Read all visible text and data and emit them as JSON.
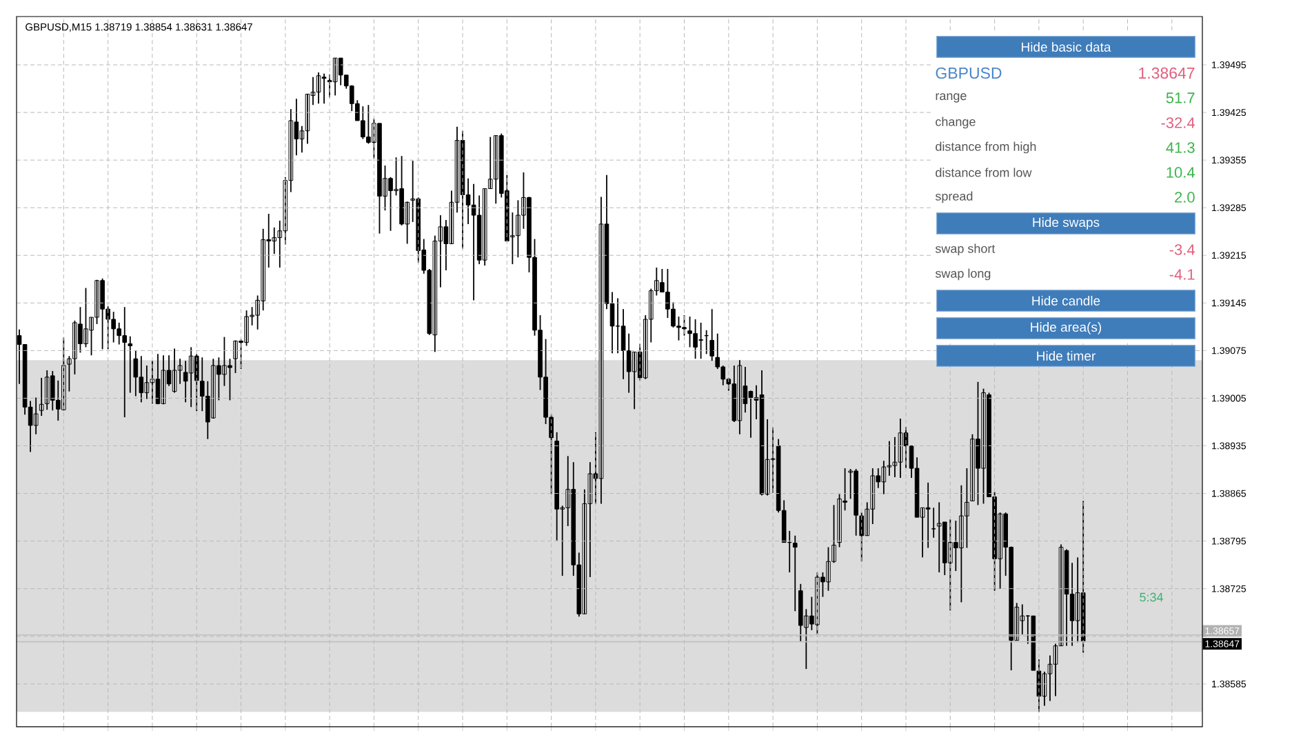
{
  "chart_data": {
    "type": "candlestick",
    "title": "GBPUSD,M15  1.38719 1.38854 1.38631 1.38647",
    "categories": [
      null,
      null,
      null,
      null,
      null,
      null,
      null,
      null,
      null,
      null,
      null,
      null,
      null,
      null,
      null,
      null,
      null,
      null,
      null,
      null,
      null,
      null,
      null,
      null,
      null,
      null,
      null,
      null,
      null,
      null,
      null,
      null,
      null,
      null,
      null,
      null,
      null,
      null,
      null,
      null,
      null,
      null,
      null,
      null,
      null,
      null,
      null,
      null,
      null,
      null,
      null,
      null,
      null,
      null,
      null,
      null,
      null,
      null,
      null,
      null,
      null,
      null,
      null,
      null,
      null,
      null,
      null,
      null,
      null,
      null,
      null,
      null,
      null,
      null,
      null,
      null,
      null,
      null,
      null,
      null,
      null,
      null,
      null,
      null,
      null,
      null,
      null,
      null,
      null,
      null,
      null,
      null,
      null,
      null,
      null,
      null,
      null,
      null,
      null,
      null,
      null,
      null,
      null,
      null,
      null,
      null,
      null,
      null,
      null,
      null,
      null,
      null,
      null,
      null,
      null,
      null,
      null,
      null,
      null,
      null,
      null,
      null,
      null,
      null,
      null,
      null,
      null,
      null,
      null,
      null,
      null,
      null,
      null,
      null,
      null,
      null,
      null,
      null,
      null,
      null,
      null,
      null,
      null,
      null,
      null,
      null,
      null,
      null,
      null,
      null,
      null,
      null,
      null,
      null,
      null,
      null,
      null,
      null,
      null,
      null,
      null,
      null,
      null,
      null,
      null,
      null,
      null,
      null,
      null,
      null,
      null,
      null,
      null,
      null,
      null,
      null,
      null,
      null,
      null,
      null,
      null,
      null,
      null,
      null,
      null,
      null,
      null,
      null,
      null,
      null,
      null,
      null,
      null,
      null,
      null,
      null,
      null,
      null,
      null,
      null,
      null,
      null,
      null,
      null,
      null,
      null,
      null,
      null,
      null,
      null,
      null,
      null,
      null,
      null
    ],
    "ohlc": [
      [
        1.39097,
        1.39106,
        1.39026,
        1.39084
      ],
      [
        1.39084,
        1.39084,
        1.38981,
        1.38992
      ],
      [
        1.38992,
        1.39001,
        1.38926,
        1.38965
      ],
      [
        1.38965,
        1.39006,
        1.38952,
        1.38982
      ],
      [
        1.38987,
        1.39035,
        1.38979,
        1.38996
      ],
      [
        1.38997,
        1.39046,
        1.38988,
        1.39036
      ],
      [
        1.39038,
        1.39045,
        1.38987,
        1.39002
      ],
      [
        1.39002,
        1.39031,
        1.38972,
        1.38989
      ],
      [
        1.38988,
        1.39094,
        1.38987,
        1.39053
      ],
      [
        1.39055,
        1.39067,
        1.39015,
        1.39063
      ],
      [
        1.39063,
        1.39119,
        1.3904,
        1.39116
      ],
      [
        1.39114,
        1.39139,
        1.39072,
        1.39085
      ],
      [
        1.39085,
        1.39167,
        1.3908,
        1.39107
      ],
      [
        1.39105,
        1.39124,
        1.39068,
        1.39124
      ],
      [
        1.39124,
        1.39179,
        1.39114,
        1.39178
      ],
      [
        1.39178,
        1.39181,
        1.39077,
        1.39136
      ],
      [
        1.39136,
        1.3914,
        1.39077,
        1.39121
      ],
      [
        1.39121,
        1.39132,
        1.39087,
        1.39107
      ],
      [
        1.39107,
        1.39116,
        1.39084,
        1.39097
      ],
      [
        1.39097,
        1.39139,
        1.38977,
        1.39087
      ],
      [
        1.39085,
        1.39096,
        1.39013,
        1.39082
      ],
      [
        1.39063,
        1.39075,
        1.39008,
        1.39036
      ],
      [
        1.39036,
        1.39067,
        1.38999,
        1.39013
      ],
      [
        1.39013,
        1.39053,
        1.39004,
        1.39028
      ],
      [
        1.39028,
        1.3906,
        1.38997,
        1.39033
      ],
      [
        1.39033,
        1.3907,
        1.38996,
        1.38997
      ],
      [
        1.38997,
        1.39068,
        1.38996,
        1.39046
      ],
      [
        1.39046,
        1.39068,
        1.39023,
        1.39026
      ],
      [
        1.39015,
        1.39078,
        1.39013,
        1.39046
      ],
      [
        1.39046,
        1.39063,
        1.39026,
        1.39053
      ],
      [
        1.39043,
        1.3906,
        1.38999,
        1.3903
      ],
      [
        1.39042,
        1.3908,
        1.38992,
        1.39067
      ],
      [
        1.39067,
        1.3907,
        1.38986,
        1.39031
      ],
      [
        1.3903,
        1.39065,
        1.38986,
        1.39008
      ],
      [
        1.39008,
        1.3903,
        1.38945,
        1.3897
      ],
      [
        1.38976,
        1.39063,
        1.38975,
        1.39053
      ],
      [
        1.39053,
        1.39065,
        1.39002,
        1.3904
      ],
      [
        1.3904,
        1.39095,
        1.39023,
        1.39053
      ],
      [
        1.39053,
        1.39063,
        1.39002,
        1.3905
      ],
      [
        1.39063,
        1.3909,
        1.39042,
        1.39089
      ],
      [
        1.39089,
        1.39092,
        1.39048,
        1.39087
      ],
      [
        1.39087,
        1.39134,
        1.39082,
        1.39125
      ],
      [
        1.39125,
        1.39139,
        1.39112,
        1.39127
      ],
      [
        1.39127,
        1.39156,
        1.39106,
        1.39149
      ],
      [
        1.39148,
        1.39254,
        1.39134,
        1.39238
      ],
      [
        1.39238,
        1.39276,
        1.39197,
        1.39236
      ],
      [
        1.39236,
        1.39256,
        1.39217,
        1.39241
      ],
      [
        1.39241,
        1.39266,
        1.39197,
        1.39251
      ],
      [
        1.39251,
        1.3933,
        1.39231,
        1.39325
      ],
      [
        1.39325,
        1.3943,
        1.39308,
        1.39413
      ],
      [
        1.39411,
        1.39445,
        1.39362,
        1.39386
      ],
      [
        1.39386,
        1.39405,
        1.39366,
        1.39398
      ],
      [
        1.39398,
        1.39452,
        1.39379,
        1.39452
      ],
      [
        1.3945,
        1.39477,
        1.39436,
        1.39455
      ],
      [
        1.39455,
        1.39484,
        1.39438,
        1.39479
      ],
      [
        1.39477,
        1.39482,
        1.39438,
        1.39475
      ],
      [
        1.39472,
        1.39481,
        1.39447,
        1.3947
      ],
      [
        1.3947,
        1.39505,
        1.3945,
        1.39505
      ],
      [
        1.39505,
        1.39505,
        1.39465,
        1.3948
      ],
      [
        1.3948,
        1.3948,
        1.3946,
        1.39464
      ],
      [
        1.39464,
        1.39465,
        1.39427,
        1.39438
      ],
      [
        1.39438,
        1.39443,
        1.39413,
        1.39413
      ],
      [
        1.39413,
        1.39434,
        1.39386,
        1.39389
      ],
      [
        1.39389,
        1.39436,
        1.39379,
        1.39381
      ],
      [
        1.39381,
        1.39416,
        1.39357,
        1.39409
      ],
      [
        1.39409,
        1.39409,
        1.39247,
        1.39302
      ],
      [
        1.39302,
        1.39347,
        1.39281,
        1.39328
      ],
      [
        1.39328,
        1.3933,
        1.39251,
        1.3931
      ],
      [
        1.3931,
        1.39359,
        1.39303,
        1.39312
      ],
      [
        1.39313,
        1.39361,
        1.39259,
        1.39261
      ],
      [
        1.39261,
        1.39294,
        1.39232,
        1.39293
      ],
      [
        1.39296,
        1.39354,
        1.39264,
        1.39298
      ],
      [
        1.39298,
        1.393,
        1.39204,
        1.39222
      ],
      [
        1.39223,
        1.39239,
        1.39188,
        1.39193
      ],
      [
        1.39193,
        1.39195,
        1.39098,
        1.391
      ],
      [
        1.39098,
        1.39244,
        1.39073,
        1.39236
      ],
      [
        1.39236,
        1.39274,
        1.39168,
        1.39257
      ],
      [
        1.39257,
        1.39267,
        1.39193,
        1.39232
      ],
      [
        1.39232,
        1.3931,
        1.39232,
        1.39293
      ],
      [
        1.39293,
        1.39404,
        1.39278,
        1.39384
      ],
      [
        1.39384,
        1.39398,
        1.39225,
        1.39304
      ],
      [
        1.39304,
        1.39328,
        1.39261,
        1.39289
      ],
      [
        1.39289,
        1.3932,
        1.39149,
        1.39274
      ],
      [
        1.39274,
        1.39303,
        1.39202,
        1.39208
      ],
      [
        1.39208,
        1.39313,
        1.392,
        1.39313
      ],
      [
        1.39313,
        1.39389,
        1.39313,
        1.39327
      ],
      [
        1.39327,
        1.39391,
        1.39291,
        1.39391
      ],
      [
        1.39391,
        1.39394,
        1.393,
        1.39306
      ],
      [
        1.3931,
        1.39333,
        1.39236,
        1.39236
      ],
      [
        1.39242,
        1.39278,
        1.39202,
        1.39244
      ],
      [
        1.39244,
        1.39296,
        1.39212,
        1.39274
      ],
      [
        1.39274,
        1.39337,
        1.39254,
        1.393
      ],
      [
        1.393,
        1.39301,
        1.3919,
        1.39212
      ],
      [
        1.39212,
        1.39239,
        1.39097,
        1.39105
      ],
      [
        1.39105,
        1.39127,
        1.39017,
        1.39036
      ],
      [
        1.39036,
        1.39092,
        1.38967,
        1.38977
      ],
      [
        1.38977,
        1.38981,
        1.38864,
        1.38947
      ],
      [
        1.38942,
        1.38955,
        1.38796,
        1.38842
      ],
      [
        1.38842,
        1.38847,
        1.38744,
        1.38844
      ],
      [
        1.38844,
        1.3892,
        1.38817,
        1.38871
      ],
      [
        1.38871,
        1.38911,
        1.38744,
        1.3876
      ],
      [
        1.3876,
        1.38778,
        1.38684,
        1.38688
      ],
      [
        1.38688,
        1.38871,
        1.38688,
        1.3885
      ],
      [
        1.3885,
        1.38911,
        1.38742,
        1.38894
      ],
      [
        1.38894,
        1.38955,
        1.3885,
        1.38887
      ],
      [
        1.38887,
        1.39301,
        1.3885,
        1.39261
      ],
      [
        1.39261,
        1.39333,
        1.39136,
        1.39144
      ],
      [
        1.39144,
        1.39161,
        1.39071,
        1.39111
      ],
      [
        1.39111,
        1.39152,
        1.39071,
        1.39111
      ],
      [
        1.39111,
        1.39136,
        1.39033,
        1.39075
      ],
      [
        1.39075,
        1.391,
        1.39013,
        1.39044
      ],
      [
        1.39044,
        1.39073,
        1.38989,
        1.39073
      ],
      [
        1.39073,
        1.39085,
        1.39031,
        1.39035
      ],
      [
        1.39035,
        1.39127,
        1.39033,
        1.39121
      ],
      [
        1.39121,
        1.39166,
        1.39087,
        1.39163
      ],
      [
        1.39163,
        1.39197,
        1.39156,
        1.39178
      ],
      [
        1.39175,
        1.39195,
        1.39161,
        1.39161
      ],
      [
        1.39161,
        1.39195,
        1.39123,
        1.39136
      ],
      [
        1.39136,
        1.39146,
        1.39109,
        1.39111
      ],
      [
        1.39111,
        1.39125,
        1.3909,
        1.39109
      ],
      [
        1.39109,
        1.39127,
        1.39097,
        1.39107
      ],
      [
        1.39104,
        1.39125,
        1.3908,
        1.391
      ],
      [
        1.391,
        1.39121,
        1.39063,
        1.3908
      ],
      [
        1.3909,
        1.39116,
        1.39063,
        1.39091
      ],
      [
        1.39097,
        1.39105,
        1.3907,
        1.39097
      ],
      [
        1.3909,
        1.39136,
        1.3906,
        1.39067
      ],
      [
        1.39065,
        1.391,
        1.39048,
        1.39051
      ],
      [
        1.39051,
        1.39053,
        1.39024,
        1.39033
      ],
      [
        1.39033,
        1.39035,
        1.39016,
        1.39026
      ],
      [
        1.39026,
        1.39053,
        1.3897,
        1.38972
      ],
      [
        1.38972,
        1.39061,
        1.38952,
        1.39053
      ],
      [
        1.39023,
        1.39051,
        1.38984,
        1.38997
      ],
      [
        1.39015,
        1.39016,
        1.38947,
        1.39006
      ],
      [
        1.39006,
        1.39024,
        1.38974,
        1.39002
      ],
      [
        1.3901,
        1.39046,
        1.38862,
        1.38864
      ],
      [
        1.38864,
        1.38974,
        1.38862,
        1.38915
      ],
      [
        1.38915,
        1.38962,
        1.38866,
        1.38916
      ],
      [
        1.38935,
        1.38945,
        1.38837,
        1.3884
      ],
      [
        1.3884,
        1.38855,
        1.38793,
        1.38793
      ],
      [
        1.38793,
        1.3881,
        1.38749,
        1.38793
      ],
      [
        1.38792,
        1.38803,
        1.38692,
        1.38786
      ],
      [
        1.38722,
        1.38732,
        1.38647,
        1.38671
      ],
      [
        1.38668,
        1.38695,
        1.38607,
        1.38685
      ],
      [
        1.38685,
        1.38713,
        1.38664,
        1.38673
      ],
      [
        1.38672,
        1.38749,
        1.38658,
        1.38742
      ],
      [
        1.38742,
        1.38749,
        1.38713,
        1.38735
      ],
      [
        1.38735,
        1.38786,
        1.38722,
        1.38765
      ],
      [
        1.38765,
        1.38848,
        1.38763,
        1.38789
      ],
      [
        1.38793,
        1.38864,
        1.38786,
        1.38857
      ],
      [
        1.38854,
        1.38902,
        1.3884,
        1.38852
      ],
      [
        1.38896,
        1.38901,
        1.38857,
        1.38898
      ],
      [
        1.38898,
        1.38901,
        1.38803,
        1.38833
      ],
      [
        1.38832,
        1.38837,
        1.38765,
        1.38803
      ],
      [
        1.38803,
        1.38852,
        1.38803,
        1.38842
      ],
      [
        1.38842,
        1.38902,
        1.3882,
        1.38891
      ],
      [
        1.38891,
        1.38902,
        1.38873,
        1.38882
      ],
      [
        1.38882,
        1.38913,
        1.38864,
        1.38904
      ],
      [
        1.38904,
        1.38942,
        1.38891,
        1.38906
      ],
      [
        1.38906,
        1.38948,
        1.38889,
        1.38911
      ],
      [
        1.38911,
        1.38975,
        1.38888,
        1.38954
      ],
      [
        1.38954,
        1.38963,
        1.38902,
        1.38935
      ],
      [
        1.38935,
        1.38935,
        1.38888,
        1.38902
      ],
      [
        1.38902,
        1.38918,
        1.3883,
        1.3883
      ],
      [
        1.3883,
        1.38844,
        1.38771,
        1.38844
      ],
      [
        1.38844,
        1.38881,
        1.38785,
        1.38842
      ],
      [
        1.38813,
        1.38844,
        1.388,
        1.38813
      ],
      [
        1.38817,
        1.38852,
        1.38749,
        1.38821
      ],
      [
        1.38823,
        1.38823,
        1.38745,
        1.38763
      ],
      [
        1.38763,
        1.38827,
        1.38693,
        1.38793
      ],
      [
        1.38793,
        1.38825,
        1.38751,
        1.38785
      ],
      [
        1.38785,
        1.38877,
        1.38705,
        1.38832
      ],
      [
        1.38832,
        1.38902,
        1.38785,
        1.38852
      ],
      [
        1.38854,
        1.38952,
        1.38854,
        1.38945
      ],
      [
        1.38945,
        1.39029,
        1.38848,
        1.38902
      ],
      [
        1.38902,
        1.39019,
        1.3885,
        1.39013
      ],
      [
        1.3901,
        1.39013,
        1.3886,
        1.3886
      ],
      [
        1.3886,
        1.38867,
        1.38722,
        1.38769
      ],
      [
        1.38769,
        1.38837,
        1.38725,
        1.38835
      ],
      [
        1.38835,
        1.38837,
        1.38744,
        1.38786
      ],
      [
        1.38786,
        1.38787,
        1.38605,
        1.38649
      ],
      [
        1.38649,
        1.38704,
        1.38649,
        1.38698
      ],
      [
        1.38678,
        1.38702,
        1.38658,
        1.38685
      ],
      [
        1.38685,
        1.38686,
        1.38644,
        1.38685
      ],
      [
        1.38685,
        1.38685,
        1.38605,
        1.38605
      ],
      [
        1.38604,
        1.38621,
        1.38544,
        1.38567
      ],
      [
        1.38567,
        1.38603,
        1.38553,
        1.386
      ],
      [
        1.386,
        1.38627,
        1.3856,
        1.38614
      ],
      [
        1.38614,
        1.38644,
        1.38567,
        1.38641
      ],
      [
        1.38641,
        1.3879,
        1.38641,
        1.38786
      ],
      [
        1.38781,
        1.38783,
        1.38641,
        1.38717
      ],
      [
        1.38717,
        1.38763,
        1.38641,
        1.38678
      ],
      [
        1.38678,
        1.38771,
        1.38646,
        1.38719
      ],
      [
        1.38719,
        1.38854,
        1.38631,
        1.38647
      ],
      null,
      null,
      null,
      null,
      null,
      null,
      null,
      null,
      null,
      null,
      null,
      null,
      null,
      null,
      null,
      null,
      null,
      null,
      null,
      null,
      null
    ],
    "ylim": [
      1.38522,
      1.39566
    ],
    "yticks": [
      1.38585,
      {
        "value": 1.38655,
        "label": null
      },
      1.38725,
      1.38795,
      1.38865,
      1.38935,
      1.39005,
      1.39075,
      1.39145,
      1.39215,
      1.39285,
      1.39355,
      1.39425,
      1.39495
    ],
    "tick_labels": "y",
    "grid": true,
    "bands": [
      {
        "axis": "y",
        "from": 1.38544,
        "to": 1.39061,
        "color": "#dcdcdc"
      }
    ],
    "ref_lines": [
      {
        "axis": "y",
        "value": 1.38657,
        "label": "1.38657",
        "color": "#c0c0c0"
      },
      {
        "axis": "y",
        "value": 1.38647,
        "label": "1.38647",
        "color": "#c0c0c0"
      }
    ],
    "annotations": [
      "Hide basic data",
      "GBPUSD",
      "1.38647",
      "range",
      "51.7",
      "change",
      "-32.4",
      "distance from high",
      "41.3",
      "distance from low",
      "10.4",
      "spread",
      "2.0",
      "Hide swaps",
      "swap short",
      "-3.4",
      "swap long",
      "-4.1",
      "Hide candle",
      "Hide area(s)",
      "Hide timer",
      "5:34"
    ]
  }
}
